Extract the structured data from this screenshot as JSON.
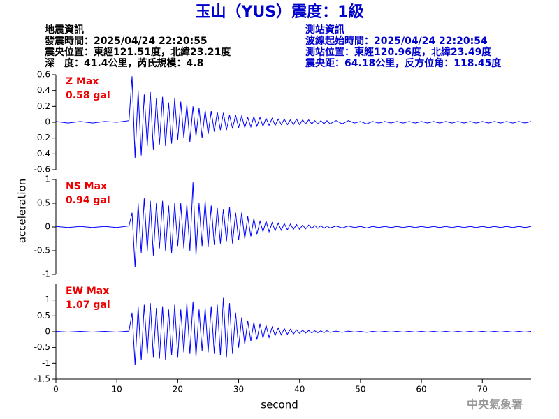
{
  "title": "玉山（YUS）震度：1級",
  "info_left": [
    "地震資訊",
    "發震時間：2025/04/24 22:20:55",
    "震央位置：東經121.51度，北緯23.21度",
    "深　度：41.4公里，芮氏規模：4.8"
  ],
  "info_right": [
    "測站資訊",
    "波線起始時間：2025/04/24 22:20:54",
    "測站位置：東經120.96度，北緯23.49度",
    "震央距：64.18公里，反方位角：118.45度"
  ],
  "ylabel": "acceleration",
  "xlabel": "second",
  "footer": "中央氣象署",
  "chart_data": [
    {
      "type": "line",
      "annotation": [
        "Z Max",
        "0.58 gal"
      ],
      "color": "#0000ff",
      "xlim": [
        0,
        78
      ],
      "ylim": [
        -0.6,
        0.6
      ],
      "yticks": [
        -0.6,
        -0.4,
        -0.2,
        0,
        0.2,
        0.4,
        0.6
      ],
      "x": [
        0,
        2,
        4,
        6,
        8,
        10,
        12,
        12.5,
        13,
        13.5,
        14,
        14.5,
        15,
        15.5,
        16,
        16.5,
        17,
        17.5,
        18,
        18.5,
        19,
        19.5,
        20,
        20.5,
        21,
        21.5,
        22,
        22.5,
        23,
        23.5,
        24,
        24.5,
        25,
        25.5,
        26,
        26.5,
        27,
        27.5,
        28,
        28.5,
        29,
        29.5,
        30,
        30.5,
        31,
        31.5,
        32,
        32.5,
        33,
        33.5,
        34,
        34.5,
        35,
        35.5,
        36,
        36.5,
        37,
        37.5,
        38,
        38.5,
        39,
        39.5,
        40,
        40.5,
        41,
        41.5,
        42,
        42.5,
        43,
        43.5,
        44,
        44.5,
        45,
        46,
        47,
        48,
        49,
        50,
        51,
        52,
        53,
        54,
        55,
        56,
        57,
        58,
        59,
        60,
        61,
        62,
        63,
        64,
        65,
        66,
        67,
        68,
        69,
        70,
        71,
        72,
        73,
        74,
        75,
        76,
        77,
        78
      ],
      "values": [
        0.01,
        -0.01,
        0.01,
        -0.01,
        0.01,
        0,
        0.02,
        0.58,
        -0.45,
        0.4,
        -0.42,
        0.35,
        -0.3,
        0.38,
        -0.35,
        0.3,
        -0.28,
        0.32,
        -0.3,
        0.25,
        -0.27,
        0.3,
        -0.22,
        0.26,
        -0.2,
        0.22,
        -0.25,
        0.2,
        -0.18,
        0.18,
        -0.2,
        0.15,
        -0.15,
        0.14,
        -0.12,
        0.13,
        -0.1,
        0.12,
        -0.1,
        0.09,
        -0.08,
        0.09,
        -0.07,
        0.08,
        -0.07,
        0.06,
        -0.06,
        0.07,
        -0.05,
        0.06,
        -0.05,
        0.05,
        -0.04,
        0.05,
        -0.04,
        0.04,
        -0.03,
        0.04,
        -0.03,
        0.03,
        -0.03,
        0.04,
        -0.03,
        0.03,
        -0.02,
        0.03,
        -0.02,
        0.02,
        -0.02,
        0.02,
        -0.02,
        0.02,
        -0.02,
        0.02,
        -0.02,
        0.02,
        -0.01,
        0.01,
        -0.02,
        0.01,
        -0.01,
        0.01,
        -0.01,
        0.01,
        -0.01,
        0.01,
        -0.01,
        0.01,
        -0.01,
        0.01,
        -0.01,
        0.01,
        -0.01,
        0.01,
        -0.01,
        0.01,
        -0.01,
        0.01,
        -0.01,
        0.01,
        -0.01,
        0.01,
        -0.01,
        0.01,
        -0.01,
        0.01
      ]
    },
    {
      "type": "line",
      "annotation": [
        "NS Max",
        "0.94 gal"
      ],
      "color": "#0000ff",
      "xlim": [
        0,
        78
      ],
      "ylim": [
        -1,
        1
      ],
      "yticks": [
        -1,
        -0.5,
        0,
        0.5,
        1
      ],
      "x": [
        0,
        2,
        4,
        6,
        8,
        10,
        12,
        12.5,
        13,
        13.5,
        14,
        14.5,
        15,
        15.5,
        16,
        16.5,
        17,
        17.5,
        18,
        18.5,
        19,
        19.5,
        20,
        20.5,
        21,
        21.5,
        22,
        22.5,
        23,
        23.5,
        24,
        24.5,
        25,
        25.5,
        26,
        26.5,
        27,
        27.5,
        28,
        28.5,
        29,
        29.5,
        30,
        30.5,
        31,
        31.5,
        32,
        32.5,
        33,
        33.5,
        34,
        34.5,
        35,
        35.5,
        36,
        36.5,
        37,
        37.5,
        38,
        38.5,
        39,
        39.5,
        40,
        40.5,
        41,
        41.5,
        42,
        42.5,
        43,
        43.5,
        44,
        44.5,
        45,
        46,
        47,
        48,
        49,
        50,
        51,
        52,
        53,
        54,
        55,
        56,
        57,
        58,
        59,
        60,
        61,
        62,
        63,
        64,
        65,
        66,
        67,
        68,
        69,
        70,
        71,
        72,
        73,
        74,
        75,
        76,
        77,
        78
      ],
      "values": [
        0.01,
        -0.01,
        0.01,
        -0.01,
        0.01,
        -0.01,
        0.02,
        0.3,
        -0.85,
        0.5,
        -0.55,
        0.6,
        -0.5,
        0.55,
        -0.6,
        0.5,
        -0.45,
        0.55,
        -0.5,
        0.45,
        -0.55,
        0.5,
        -0.4,
        0.5,
        -0.45,
        0.48,
        -0.5,
        0.94,
        -0.6,
        0.5,
        -0.4,
        0.55,
        -0.42,
        0.45,
        -0.38,
        0.4,
        -0.35,
        0.38,
        -0.3,
        0.42,
        -0.35,
        0.3,
        -0.28,
        0.3,
        -0.25,
        0.22,
        -0.2,
        0.18,
        -0.15,
        0.12,
        -0.1,
        0.12,
        -0.1,
        0.09,
        -0.08,
        0.08,
        -0.07,
        0.07,
        -0.06,
        0.06,
        -0.05,
        0.05,
        -0.05,
        0.04,
        -0.04,
        0.04,
        -0.03,
        0.03,
        -0.03,
        0.03,
        -0.03,
        0.02,
        -0.02,
        0.02,
        -0.02,
        0.02,
        -0.01,
        0.01,
        -0.02,
        0.01,
        -0.01,
        0.01,
        -0.01,
        0.01,
        -0.01,
        0.01,
        -0.01,
        0.01,
        -0.01,
        0.01,
        -0.01,
        0.01,
        -0.01,
        0.01,
        -0.01,
        0.01,
        -0.01,
        0.01,
        -0.01,
        0.01,
        -0.01,
        0.01,
        -0.01,
        0.01,
        -0.01,
        0.01
      ]
    },
    {
      "type": "line",
      "annotation": [
        "EW Max",
        "1.07 gal"
      ],
      "color": "#0000ff",
      "xlim": [
        0,
        78
      ],
      "ylim": [
        -1.5,
        1.5
      ],
      "yticks": [
        -1.5,
        -1,
        -0.5,
        0,
        0.5,
        1
      ],
      "xticks": [
        0,
        10,
        20,
        30,
        40,
        50,
        60,
        70
      ],
      "x": [
        0,
        2,
        4,
        6,
        8,
        10,
        12,
        12.5,
        13,
        13.5,
        14,
        14.5,
        15,
        15.5,
        16,
        16.5,
        17,
        17.5,
        18,
        18.5,
        19,
        19.5,
        20,
        20.5,
        21,
        21.5,
        22,
        22.5,
        23,
        23.5,
        24,
        24.5,
        25,
        25.5,
        26,
        26.5,
        27,
        27.5,
        28,
        28.5,
        29,
        29.5,
        30,
        30.5,
        31,
        31.5,
        32,
        32.5,
        33,
        33.5,
        34,
        34.5,
        35,
        35.5,
        36,
        36.5,
        37,
        37.5,
        38,
        38.5,
        39,
        39.5,
        40,
        40.5,
        41,
        41.5,
        42,
        42.5,
        43,
        43.5,
        44,
        44.5,
        45,
        46,
        47,
        48,
        49,
        50,
        51,
        52,
        53,
        54,
        55,
        56,
        57,
        58,
        59,
        60,
        61,
        62,
        63,
        64,
        65,
        66,
        67,
        68,
        69,
        70,
        71,
        72,
        73,
        74,
        75,
        76,
        77,
        78
      ],
      "values": [
        0.01,
        -0.01,
        0.01,
        -0.01,
        0.01,
        -0.01,
        0.02,
        0.6,
        -1.05,
        0.8,
        -0.9,
        0.85,
        -0.7,
        0.9,
        -0.8,
        0.75,
        -0.85,
        0.8,
        -0.9,
        0.7,
        -0.75,
        0.85,
        -0.8,
        0.7,
        -0.65,
        0.9,
        -0.7,
        0.95,
        -0.8,
        0.7,
        -0.6,
        0.75,
        -0.65,
        0.8,
        -0.7,
        0.85,
        -0.75,
        1.07,
        -0.8,
        0.9,
        -0.7,
        0.6,
        -0.5,
        0.45,
        -0.4,
        0.35,
        -0.3,
        0.3,
        -0.25,
        0.25,
        -0.2,
        0.2,
        -0.18,
        0.15,
        -0.12,
        0.12,
        -0.1,
        0.1,
        -0.08,
        0.08,
        -0.07,
        0.06,
        -0.05,
        0.05,
        -0.04,
        0.04,
        -0.04,
        0.03,
        -0.03,
        0.03,
        -0.03,
        0.03,
        -0.02,
        0.02,
        -0.02,
        0.02,
        -0.01,
        0.01,
        -0.02,
        0.01,
        -0.01,
        0.01,
        -0.01,
        0.01,
        -0.01,
        0.01,
        -0.01,
        0.01,
        -0.01,
        0.01,
        -0.01,
        0.01,
        -0.01,
        0.01,
        -0.01,
        0.01,
        -0.01,
        0.01,
        -0.01,
        0.01,
        -0.01,
        0.01,
        -0.01,
        0.01,
        -0.01,
        0.01
      ]
    }
  ]
}
